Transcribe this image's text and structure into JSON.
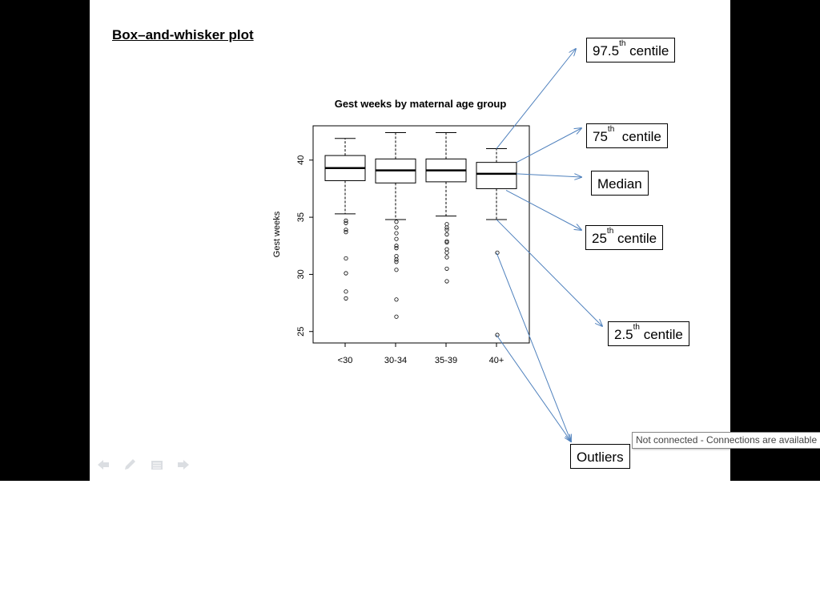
{
  "slide": {
    "title": "Box–and-whisker plot"
  },
  "callouts": {
    "p97_5": {
      "main": "97.5",
      "sup": "th",
      "rest": " centile"
    },
    "p75": {
      "main": "75",
      "sup": "th",
      "rest": "  centile"
    },
    "median": {
      "label": "Median"
    },
    "p25": {
      "main": "25",
      "sup": "th",
      "rest": " centile"
    },
    "p2_5": {
      "main": "2.5",
      "sup": "th",
      "rest": " centile"
    },
    "outliers": {
      "label": "Outliers"
    }
  },
  "tooltip": {
    "text": "Not connected - Connections are available"
  },
  "colors": {
    "arrow": "#4F81BD",
    "sidebar": "#000000"
  },
  "nav_icons": [
    "previous-arrow-icon",
    "pen-icon",
    "menu-icon",
    "next-arrow-icon"
  ],
  "chart_data": {
    "type": "boxplot",
    "title": "Gest weeks by maternal age group",
    "ylabel": "Gest weeks",
    "xlabel": "",
    "ylim": [
      24,
      43
    ],
    "yticks": [
      25,
      30,
      35,
      40
    ],
    "categories": [
      "<30",
      "30-34",
      "35-39",
      "40+"
    ],
    "boxes": [
      {
        "whisker_low": 35.3,
        "q1": 38.2,
        "median": 39.3,
        "q3": 40.4,
        "whisker_high": 41.9,
        "outliers": [
          34.7,
          34.5,
          33.9,
          33.7,
          31.4,
          30.1,
          28.5,
          27.9
        ]
      },
      {
        "whisker_low": 34.8,
        "q1": 38.0,
        "median": 39.1,
        "q3": 40.1,
        "whisker_high": 42.4,
        "outliers": [
          34.6,
          34.1,
          33.6,
          33.1,
          32.5,
          32.3,
          31.6,
          31.3,
          31.1,
          30.4,
          27.8,
          26.3
        ]
      },
      {
        "whisker_low": 35.1,
        "q1": 38.1,
        "median": 39.1,
        "q3": 40.1,
        "whisker_high": 42.4,
        "outliers": [
          34.4,
          34.1,
          33.9,
          33.5,
          32.9,
          32.8,
          32.2,
          31.9,
          31.5,
          30.5,
          29.4
        ]
      },
      {
        "whisker_low": 34.8,
        "q1": 37.5,
        "median": 38.8,
        "q3": 39.8,
        "whisker_high": 41.0,
        "outliers": [
          31.9,
          24.7
        ]
      }
    ]
  }
}
